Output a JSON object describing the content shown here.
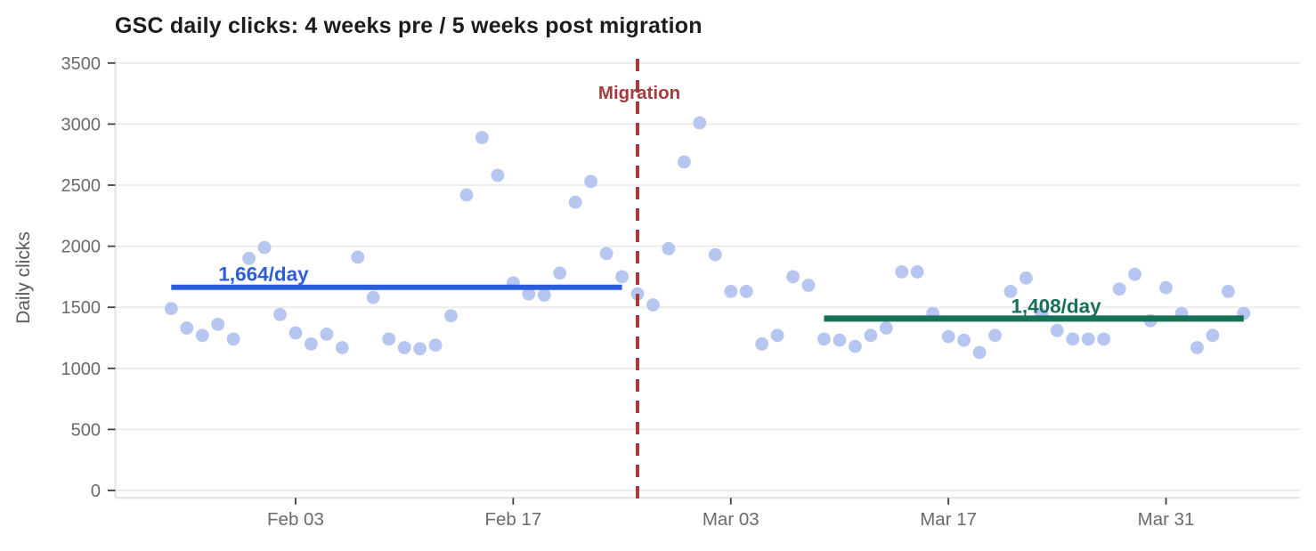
{
  "chart_data": {
    "type": "scatter",
    "title": "GSC daily clicks: 4 weeks pre / 5 weeks post migration",
    "ylabel": "Daily clicks",
    "xlabel": "",
    "ylim": [
      0,
      3500
    ],
    "yticks": [
      0,
      500,
      1000,
      1500,
      2000,
      2500,
      3000,
      3500
    ],
    "xticks": [
      {
        "label": "Feb 03",
        "day": 8
      },
      {
        "label": "Feb 17",
        "day": 22
      },
      {
        "label": "Mar 03",
        "day": 36
      },
      {
        "label": "Mar 17",
        "day": 50
      },
      {
        "label": "Mar 31",
        "day": 64
      }
    ],
    "grid": "horizontal",
    "legend_position": "none",
    "series": [
      {
        "name": "Daily clicks",
        "color": "#b6c6f0",
        "dates": [
          "Jan 26",
          "Jan 27",
          "Jan 28",
          "Jan 29",
          "Jan 30",
          "Jan 31",
          "Feb 01",
          "Feb 02",
          "Feb 03",
          "Feb 04",
          "Feb 05",
          "Feb 06",
          "Feb 07",
          "Feb 08",
          "Feb 09",
          "Feb 10",
          "Feb 11",
          "Feb 12",
          "Feb 13",
          "Feb 14",
          "Feb 15",
          "Feb 16",
          "Feb 17",
          "Feb 18",
          "Feb 19",
          "Feb 20",
          "Feb 21",
          "Feb 22",
          "Feb 23",
          "Feb 24",
          "Feb 25",
          "Feb 26",
          "Feb 27",
          "Feb 28",
          "Mar 01",
          "Mar 02",
          "Mar 03",
          "Mar 04",
          "Mar 05",
          "Mar 06",
          "Mar 07",
          "Mar 08",
          "Mar 09",
          "Mar 10",
          "Mar 11",
          "Mar 12",
          "Mar 13",
          "Mar 14",
          "Mar 15",
          "Mar 16",
          "Mar 17",
          "Mar 18",
          "Mar 19",
          "Mar 20",
          "Mar 21",
          "Mar 22",
          "Mar 23",
          "Mar 24",
          "Mar 25",
          "Mar 26",
          "Mar 27",
          "Mar 28",
          "Mar 29",
          "Mar 30",
          "Mar 31",
          "Apr 01",
          "Apr 02",
          "Apr 03",
          "Apr 04",
          "Apr 05"
        ],
        "values": [
          1490,
          1330,
          1270,
          1360,
          1240,
          1900,
          1990,
          1440,
          1290,
          1200,
          1280,
          1170,
          1910,
          1580,
          1240,
          1170,
          1160,
          1190,
          1430,
          2420,
          2890,
          2580,
          1700,
          1610,
          1600,
          1780,
          2360,
          2530,
          1940,
          1750,
          1610,
          1520,
          1980,
          2690,
          3010,
          1930,
          1630,
          1630,
          1200,
          1270,
          1750,
          1680,
          1240,
          1230,
          1180,
          1270,
          1330,
          1790,
          1790,
          1450,
          1260,
          1230,
          1130,
          1270,
          1630,
          1740,
          1440,
          1310,
          1240,
          1240,
          1240,
          1650,
          1770,
          1390,
          1660,
          1450,
          1170,
          1270,
          1630,
          1450
        ]
      }
    ],
    "annotations": {
      "migration": {
        "label": "Migration",
        "date": "Feb 25",
        "day": 30,
        "line_style": "dashed",
        "color": "#a53b3b"
      },
      "pre_average": {
        "label": "1,664/day",
        "value": 1664,
        "start_day": 0,
        "end_day": 29,
        "color": "#2b5cdb"
      },
      "post_average": {
        "label": "1,408/day",
        "value": 1408,
        "start_day": 42,
        "end_day": 69,
        "color": "#177058"
      }
    }
  },
  "style": {
    "background": "#ffffff",
    "grid_color": "#ececec",
    "spine_color": "#e2e2e2",
    "tick_mark_color": "#3d3d3d",
    "tick_label_color": "#6a6a6a",
    "axis_title_color": "#5a5a5a",
    "title_color": "#1c1c1c",
    "point_color": "#b6c6f0"
  }
}
